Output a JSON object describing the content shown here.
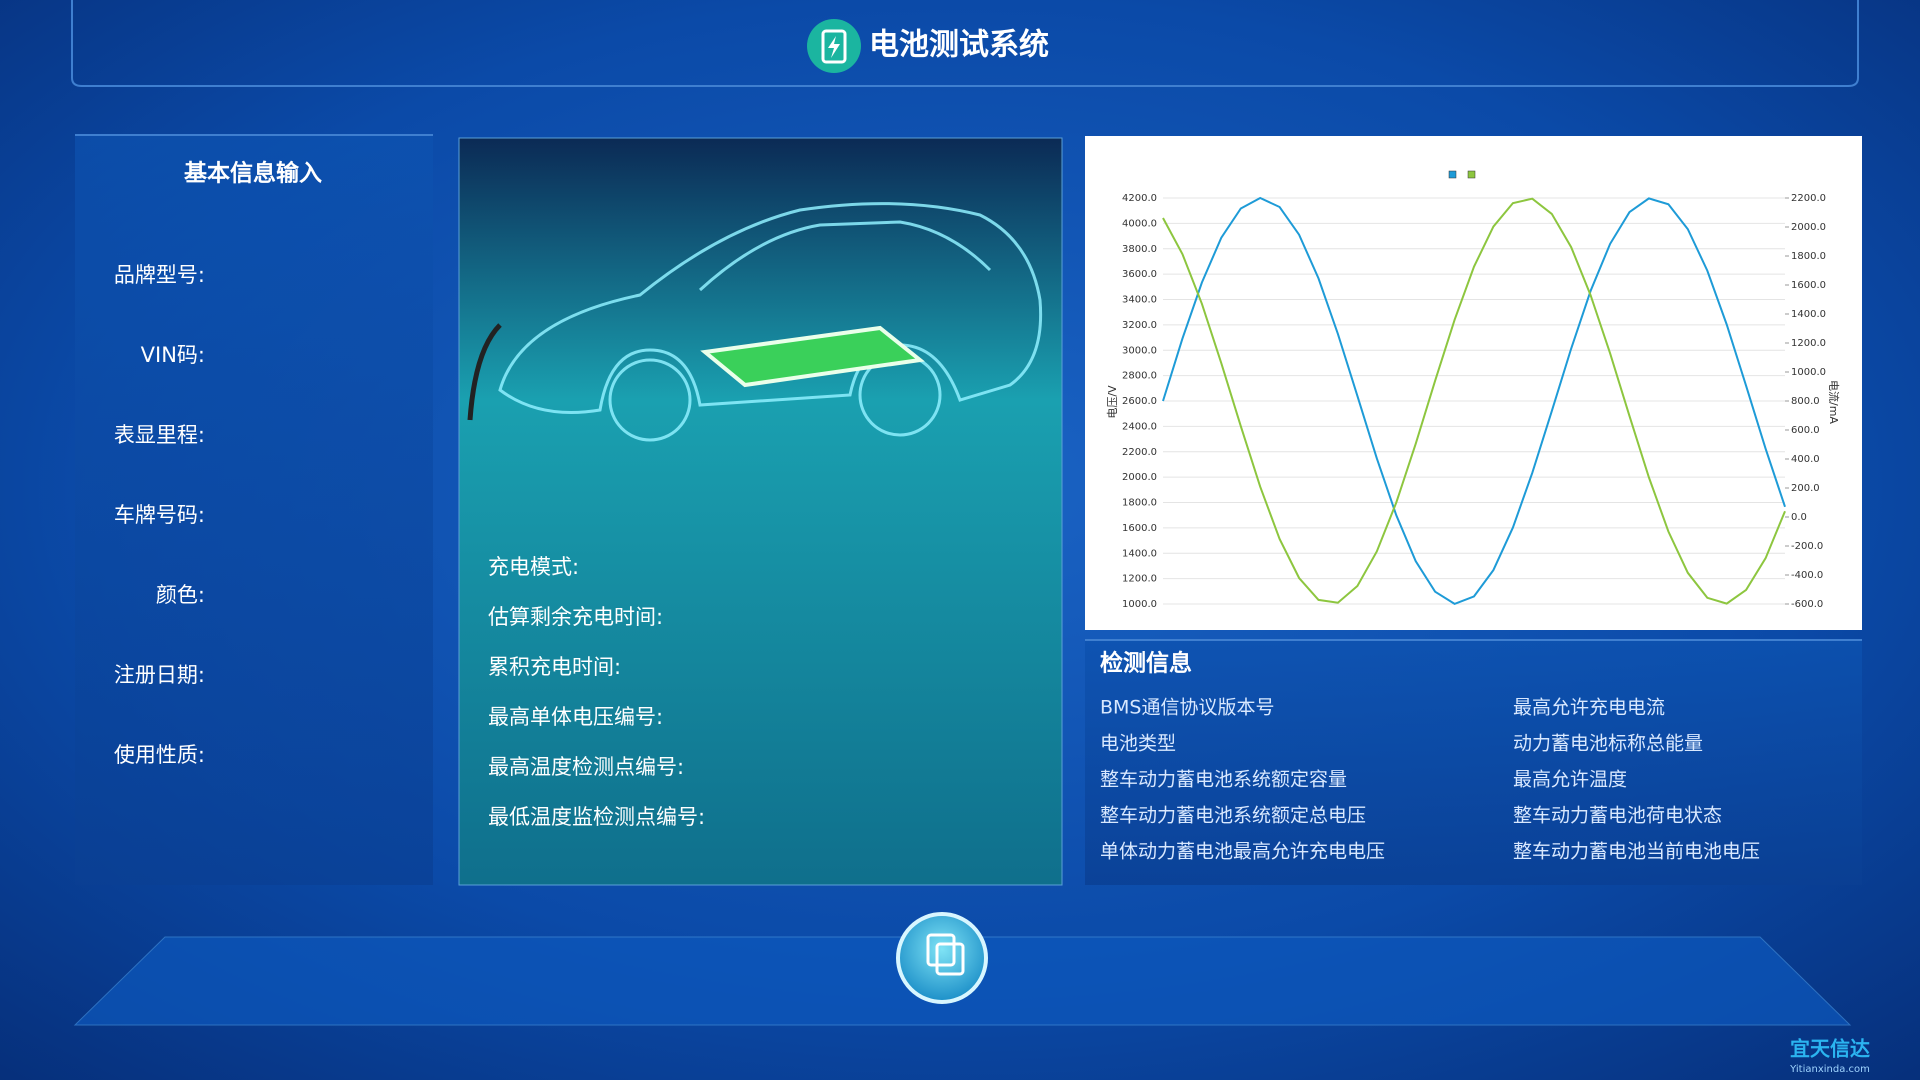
{
  "header": {
    "title": "电池测试系统"
  },
  "basic_info": {
    "title": "基本信息输入",
    "fields": [
      "品牌型号:",
      "VIN码:",
      "表显里程:",
      "车牌号码:",
      "颜色:",
      "注册日期:",
      "使用性质:"
    ]
  },
  "charging": {
    "fields": [
      "充电模式:",
      "估算剩余充电时间:",
      "累积充电时间:",
      "最高单体电压编号:",
      "最高温度检测点编号:",
      "最低温度监检测点编号:"
    ]
  },
  "chart_data": {
    "type": "line",
    "y_label": "电压/V",
    "y2_label": "电流/mA",
    "grid": true,
    "series": [
      {
        "color": "#1e9bd7",
        "values": [
          2600,
          3091,
          3534,
          3887,
          4117,
          4200,
          4129,
          3911,
          3566,
          3129,
          2640,
          2148,
          1699,
          1337,
          1097,
          1001,
          1060,
          1267,
          1602,
          2034,
          2520,
          3014,
          3468,
          3838,
          4089,
          4197,
          4150,
          3955,
          3628,
          3203,
          2720,
          2224,
          1766
        ]
      },
      {
        "color": "#8dc63f",
        "axis": "y2",
        "values": [
          2062,
          1814,
          1470,
          1061,
          626,
          209,
          -152,
          -421,
          -572,
          -591,
          -476,
          -238,
          100,
          505,
          939,
          1360,
          1726,
          2003,
          2165,
          2195,
          2090,
          1861,
          1530,
          1129,
          696,
          273,
          -100,
          -385,
          -557,
          -597,
          -503,
          -284,
          40
        ]
      }
    ],
    "ylim": [
      1000,
      4200
    ],
    "yticks": [
      {
        "value": 1000,
        "label": "1000.0"
      },
      {
        "value": 1200,
        "label": "1200.0"
      },
      {
        "value": 1400,
        "label": "1400.0"
      },
      {
        "value": 1600,
        "label": "1600.0"
      },
      {
        "value": 1800,
        "label": "1800.0"
      },
      {
        "value": 2000,
        "label": "2000.0"
      },
      {
        "value": 2200,
        "label": "2200.0"
      },
      {
        "value": 2400,
        "label": "2400.0"
      },
      {
        "value": 2600,
        "label": "2600.0"
      },
      {
        "value": 2800,
        "label": "2800.0"
      },
      {
        "value": 3000,
        "label": "3000.0"
      },
      {
        "value": 3200,
        "label": "3200.0"
      },
      {
        "value": 3400,
        "label": "3400.0"
      },
      {
        "value": 3600,
        "label": "3600.0"
      },
      {
        "value": 3800,
        "label": "3800.0"
      },
      {
        "value": 4000,
        "label": "4000.0"
      },
      {
        "value": 4200,
        "label": "4200.0"
      }
    ],
    "y2lim": [
      -600,
      2200
    ],
    "y2ticks": [
      {
        "value": -600,
        "label": "-600.0"
      },
      {
        "value": -400,
        "label": "-400.0"
      },
      {
        "value": -200,
        "label": "-200.0"
      },
      {
        "value": 0,
        "label": "0.0"
      },
      {
        "value": 200,
        "label": "200.0"
      },
      {
        "value": 400,
        "label": "400.0"
      },
      {
        "value": 600,
        "label": "600.0"
      },
      {
        "value": 800,
        "label": "800.0"
      },
      {
        "value": 1000,
        "label": "1000.0"
      },
      {
        "value": 1200,
        "label": "1200.0"
      },
      {
        "value": 1400,
        "label": "1400.0"
      },
      {
        "value": 1600,
        "label": "1600.0"
      },
      {
        "value": 1800,
        "label": "1800.0"
      },
      {
        "value": 2000,
        "label": "2000.0"
      },
      {
        "value": 2200,
        "label": "2200.0"
      }
    ]
  },
  "detection": {
    "title": "检测信息",
    "columns": [
      [
        "BMS通信协议版本号",
        "电池类型",
        "整车动力蓄电池系统额定容量",
        "整车动力蓄电池系统额定总电压",
        "单体动力蓄电池最高允许充电电压"
      ],
      [
        "最高允许充电电流",
        "动力蓄电池标称总能量",
        "最高允许温度",
        "整车动力蓄电池荷电状态",
        "整车动力蓄电池当前电池电压"
      ]
    ]
  },
  "watermark": {
    "name": "宜天信达",
    "url": "Yitianxinda.com"
  }
}
